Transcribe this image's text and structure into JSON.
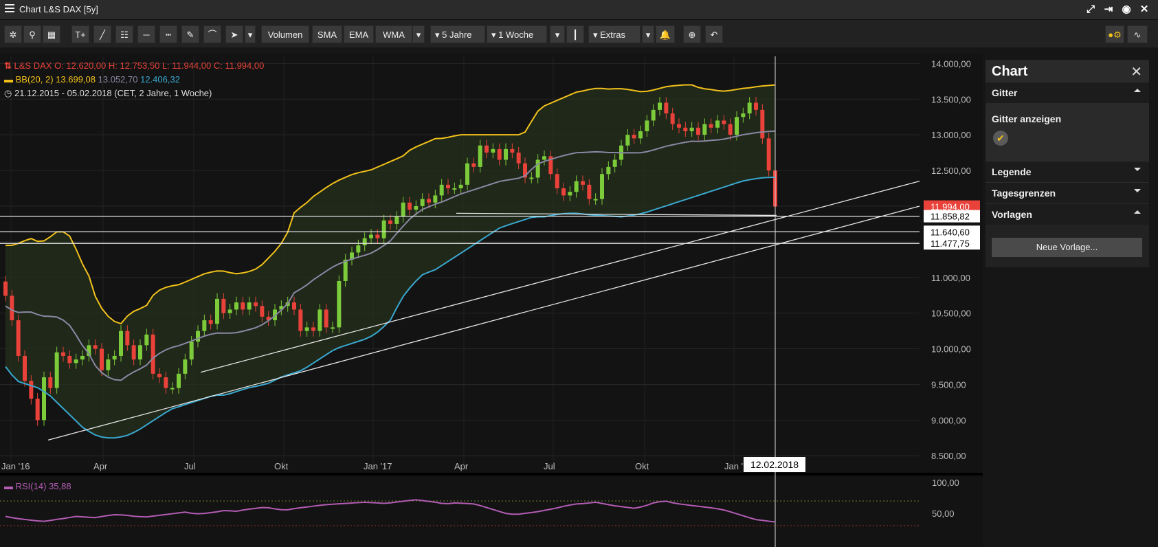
{
  "window": {
    "title": "Chart L&S DAX [5y]"
  },
  "toolbar": {
    "volumen": "Volumen",
    "sma": "SMA",
    "ema": "EMA",
    "wma": "WMA",
    "range": "5 Jahre",
    "interval": "1 Woche",
    "extras": "Extras"
  },
  "legend": {
    "instrument": "L&S DAX",
    "ohlc": "O: 12.620,00  H: 12.753,50  L: 11.944,00  C: 11.994,00",
    "bb_name": "BB(20, 2)",
    "bb_upper": "13.699,08",
    "bb_mid": "13.052,70",
    "bb_lower": "12.406,32",
    "period": "21.12.2015 - 05.02.2018  (CET, 2 Jahre, 1 Woche)"
  },
  "rsi": {
    "name": "RSI(14)",
    "value": "35,88"
  },
  "panel": {
    "title": "Chart",
    "gitter": "Gitter",
    "gitter_anzeigen": "Gitter anzeigen",
    "legende": "Legende",
    "tagesgrenzen": "Tagesgrenzen",
    "vorlagen": "Vorlagen",
    "neue_vorlage": "Neue Vorlage..."
  },
  "crosshair_date": "12.02.2018",
  "colors": {
    "up": "#7ccb3a",
    "down": "#e8423a",
    "bb_upper": "#f2c21b",
    "bb_mid": "#8a88a4",
    "bb_lower": "#3aa8d0",
    "rsi": "#b45cb4"
  },
  "chart_data": {
    "type": "candlestick",
    "instrument": "L&S DAX",
    "y_ticks": [
      "14.000,00",
      "13.500,00",
      "13.000,00",
      "12.500,00",
      "12.000,00",
      "11.500,00",
      "11.000,00",
      "10.500,00",
      "10.000,00",
      "9.500,00",
      "9.000,00",
      "8.500,00"
    ],
    "ylim": [
      8300,
      14100
    ],
    "x_ticks": [
      "Jan '16",
      "Apr",
      "Jul",
      "Okt",
      "Jan '17",
      "Apr",
      "Jul",
      "Okt",
      "Jan '18"
    ],
    "price_labels": [
      {
        "value": 11994,
        "text": "11.994,00",
        "kind": "last"
      },
      {
        "value": 11858.82,
        "text": "11.858,82",
        "kind": "line"
      },
      {
        "value": 11640.6,
        "text": "11.640,60",
        "kind": "line"
      },
      {
        "value": 11477.75,
        "text": "11.477,75",
        "kind": "line"
      }
    ],
    "closes": [
      10743,
      10400,
      9900,
      9550,
      9300,
      9000,
      9600,
      9450,
      9950,
      9900,
      9800,
      9850,
      9900,
      10050,
      10000,
      9700,
      9850,
      9900,
      10250,
      10050,
      9850,
      10050,
      10200,
      9650,
      9600,
      9450,
      9450,
      9650,
      9850,
      10100,
      10250,
      10400,
      10350,
      10700,
      10500,
      10550,
      10650,
      10550,
      10650,
      10600,
      10450,
      10400,
      10550,
      10600,
      10650,
      10550,
      10250,
      10300,
      10250,
      10550,
      10300,
      10300,
      10950,
      11250,
      11350,
      11450,
      11550,
      11600,
      11550,
      11800,
      11750,
      11850,
      12050,
      11950,
      12000,
      12100,
      12050,
      12150,
      12300,
      12250,
      12250,
      12300,
      12600,
      12550,
      12850,
      12750,
      12800,
      12650,
      12800,
      12750,
      12600,
      12400,
      12400,
      12650,
      12700,
      12450,
      12250,
      12150,
      12200,
      12350,
      12300,
      12100,
      12100,
      12450,
      12550,
      12650,
      12850,
      13000,
      12950,
      13050,
      13200,
      13350,
      13450,
      13300,
      13150,
      13100,
      13050,
      13100,
      13000,
      13150,
      13100,
      13200,
      13150,
      13000,
      13250,
      13300,
      13450,
      13350,
      12950,
      12500,
      11994
    ],
    "bb_upper": [
      11450,
      11450,
      11500,
      11550,
      11500,
      11520,
      11640,
      11640,
      11560,
      11250,
      11050,
      10680,
      10500,
      10390,
      10350,
      10500,
      10550,
      10600,
      10780,
      10850,
      10880,
      10900,
      10950,
      11000,
      11050,
      11080,
      11100,
      11070,
      11050,
      11070,
      11100,
      11180,
      11300,
      11420,
      11600,
      11950,
      12000,
      12120,
      12200,
      12280,
      12350,
      12400,
      12450,
      12480,
      12500,
      12550,
      12600,
      12650,
      12700,
      12800,
      12850,
      12900,
      12950,
      12950,
      12980,
      13000,
      13000,
      13000,
      13000,
      13000,
      13000,
      13000,
      13000,
      13050,
      13300,
      13400,
      13450,
      13500,
      13550,
      13600,
      13620,
      13650,
      13650,
      13640,
      13650,
      13640,
      13620,
      13600,
      13620,
      13650,
      13680,
      13690,
      13700,
      13700,
      13650,
      13640,
      13620,
      13610,
      13630,
      13650,
      13660,
      13680,
      13690,
      13699
    ],
    "bb_lower": [
      9750,
      9550,
      9500,
      9450,
      9350,
      9200,
      9050,
      8900,
      8800,
      8750,
      8750,
      8780,
      8850,
      8950,
      9050,
      9150,
      9200,
      9250,
      9300,
      9350,
      9350,
      9400,
      9450,
      9480,
      9520,
      9600,
      9650,
      9700,
      9800,
      9900,
      10000,
      10050,
      10100,
      10150,
      10250,
      10400,
      10700,
      10900,
      11050,
      11100,
      11200,
      11300,
      11400,
      11500,
      11600,
      11700,
      11750,
      11800,
      11850,
      11850,
      11880,
      11900,
      11900,
      11880,
      11870,
      11860,
      11850,
      11870,
      11900,
      11950,
      12000,
      12050,
      12100,
      12150,
      12200,
      12250,
      12300,
      12350,
      12380,
      12400,
      12406
    ],
    "rsi_values": [
      45,
      42,
      40,
      38,
      37,
      40,
      42,
      45,
      44,
      43,
      46,
      48,
      47,
      45,
      44,
      46,
      48,
      50,
      52,
      49,
      50,
      52,
      55,
      53,
      56,
      58,
      60,
      57,
      55,
      58,
      60,
      62,
      64,
      65,
      66,
      67,
      68,
      67,
      66,
      68,
      70,
      72,
      70,
      68,
      65,
      67,
      66,
      65,
      60,
      55,
      50,
      48,
      50,
      52,
      55,
      58,
      62,
      65,
      66,
      68,
      65,
      62,
      60,
      58,
      62,
      68,
      70,
      66,
      64,
      62,
      60,
      58,
      55,
      50,
      45,
      40,
      38,
      36
    ]
  }
}
